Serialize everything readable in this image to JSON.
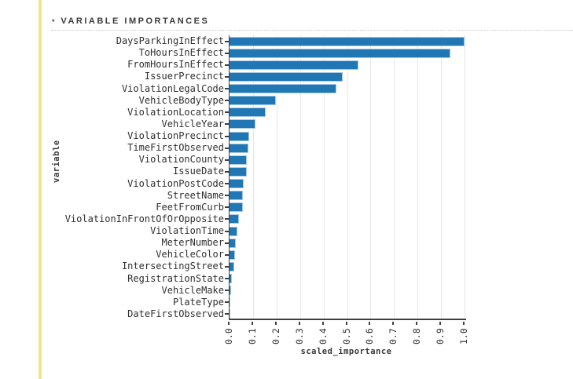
{
  "colors": {
    "accent_bar": "#f0e68c",
    "bar_fill": "#2077b4",
    "bar_stroke": "#a4c8e4",
    "grid": "#e6e6e6",
    "axis": "#3f3f3f"
  },
  "header": {
    "caret": "▾",
    "title": "VARIABLE IMPORTANCES"
  },
  "chart_data": {
    "type": "bar",
    "orientation": "horizontal",
    "title": "VARIABLE IMPORTANCES",
    "xlabel": "scaled_importance",
    "ylabel": "variable",
    "xlim": [
      0.0,
      1.0
    ],
    "grid": true,
    "x_ticks": [
      "0.0",
      "0.1",
      "0.2",
      "0.3",
      "0.4",
      "0.5",
      "0.6",
      "0.7",
      "0.8",
      "0.9",
      "1.0"
    ],
    "categories": [
      "DaysParkingInEffect",
      "ToHoursInEffect",
      "FromHoursInEffect",
      "IssuerPrecinct",
      "ViolationLegalCode",
      "VehicleBodyType",
      "ViolationLocation",
      "VehicleYear",
      "ViolationPrecinct",
      "TimeFirstObserved",
      "ViolationCounty",
      "IssueDate",
      "ViolationPostCode",
      "StreetName",
      "FeetFromCurb",
      "ViolationInFrontOfOrOpposite",
      "ViolationTime",
      "MeterNumber",
      "VehicleColor",
      "IntersectingStreet",
      "RegistrationState",
      "VehicleMake",
      "PlateType",
      "DateFirstObserved"
    ],
    "values": [
      1.0,
      0.94,
      0.55,
      0.48,
      0.455,
      0.197,
      0.155,
      0.112,
      0.084,
      0.081,
      0.074,
      0.072,
      0.06,
      0.058,
      0.056,
      0.039,
      0.032,
      0.026,
      0.024,
      0.019,
      0.011,
      0.007,
      0.005,
      0.001
    ]
  }
}
